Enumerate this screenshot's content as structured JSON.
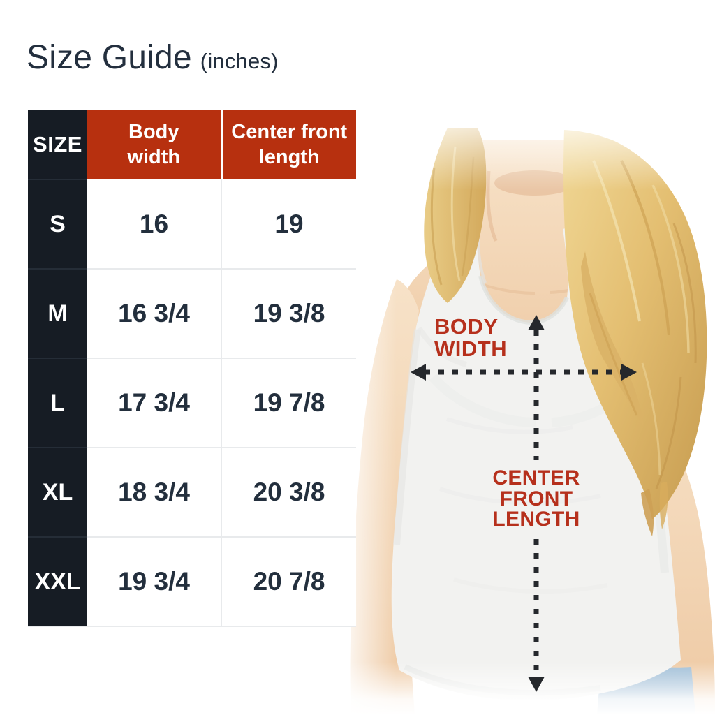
{
  "header": {
    "title": "Size Guide",
    "unit_label": "(inches)"
  },
  "size_table": {
    "columns": [
      {
        "label": "SIZE"
      },
      {
        "label": "Body\nwidth"
      },
      {
        "label": "Center front\nlength"
      }
    ],
    "rows": [
      {
        "size": "S",
        "body_width": "16",
        "center_front_length": "19"
      },
      {
        "size": "M",
        "body_width": "16 3/4",
        "center_front_length": "19 3/8"
      },
      {
        "size": "L",
        "body_width": "17 3/4",
        "center_front_length": "19 7/8"
      },
      {
        "size": "XL",
        "body_width": "18 3/4",
        "center_front_length": "20 3/8"
      },
      {
        "size": "XXL",
        "body_width": "19 3/4",
        "center_front_length": "20 7/8"
      }
    ]
  },
  "diagram": {
    "body_width_label_lines": [
      "BODY",
      "WIDTH"
    ],
    "center_front_length_label_lines": [
      "CENTER",
      "FRONT",
      "LENGTH"
    ],
    "arrows": [
      {
        "name": "body-width-arrow",
        "orientation": "horizontal",
        "style": "dotted-double-headed"
      },
      {
        "name": "center-front-length-arrow",
        "orientation": "vertical",
        "style": "dotted-double-headed"
      }
    ]
  },
  "colors": {
    "header_red": "#B7300F",
    "annotation_red": "#B6301C",
    "dark_cell": "#161C24",
    "text_navy": "#232F3E",
    "arrow_dark": "#25282C",
    "grid_line": "#E8EAEC"
  }
}
